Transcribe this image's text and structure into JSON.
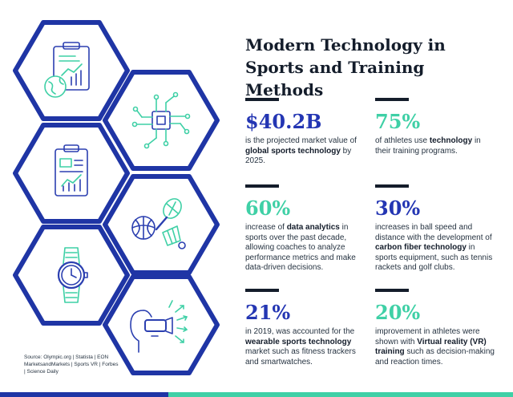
{
  "title": {
    "line1": "Modern Technology in",
    "line2": "Sports and Training Methods"
  },
  "stats": [
    {
      "value": "$40.2B",
      "color": "#2436b3",
      "pre": "is the projected market value of ",
      "bold": "global sports technology",
      "post": " by 2025."
    },
    {
      "value": "75%",
      "color": "#3fd0a6",
      "pre": "of athletes use ",
      "bold": "technology",
      "post": " in their training programs."
    },
    {
      "value": "60%",
      "color": "#3fd0a6",
      "pre": "increase of ",
      "bold": "data analytics",
      "post": " in sports over the past decade, allowing coaches to analyze performance metrics and make data-driven decisions."
    },
    {
      "value": "30%",
      "color": "#2436b3",
      "pre": "increases in ball speed and distance with the development of ",
      "bold": "carbon fiber technology",
      "post": " in sports equipment, such as tennis rackets and golf clubs."
    },
    {
      "value": "21%",
      "color": "#2436b3",
      "pre": "in 2019, was accounted for the ",
      "bold": "wearable sports technology",
      "post": " market such as fitness trackers and smartwatches."
    },
    {
      "value": "20%",
      "color": "#3fd0a6",
      "pre": "improvement in athletes were shown with ",
      "bold": "Virtual reality (VR) training",
      "post": " such as decision-making and reaction times."
    }
  ],
  "source": "Source: Olympic.org | Statista | EON MarketsandMarkets | Sports VR | Forbes | Science Daily",
  "icons": [
    "clipboard-chart-globe-icon",
    "microchip-circuit-icon",
    "clipboard-report-icon",
    "tennis-racket-ball-shuttlecock-icon",
    "smartwatch-icon",
    "vr-headset-icon"
  ],
  "colors": {
    "navy": "#1f35a5",
    "teal": "#3fd0a6",
    "dark": "#141d2b"
  }
}
